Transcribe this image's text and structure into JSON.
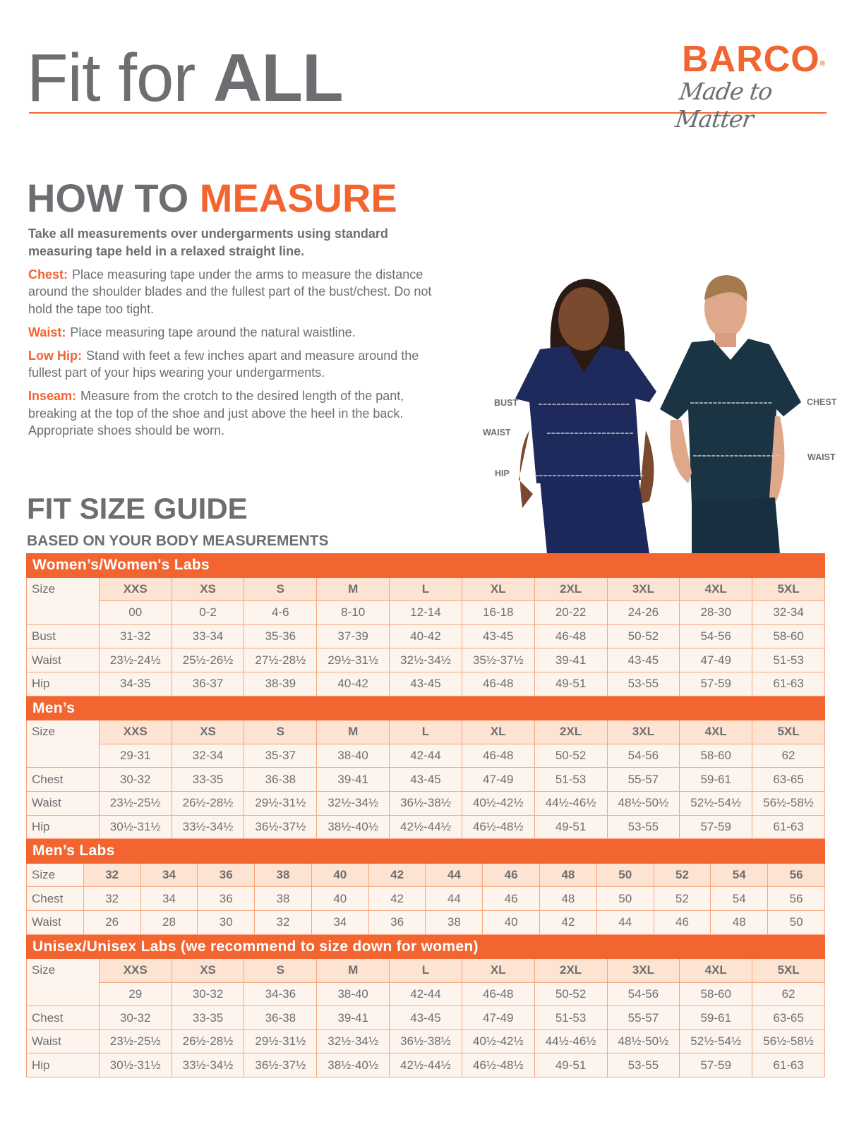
{
  "header": {
    "title_regular": "Fit for",
    "title_bold": "ALL",
    "logo_brand": "BARCO",
    "logo_registered": "®",
    "logo_tagline": "Made to Matter"
  },
  "how_to_measure": {
    "title_gray": "HOW TO",
    "title_accent": "MEASURE",
    "intro": "Take all measurements over undergarments using standard measuring tape held in a relaxed straight line.",
    "items": [
      {
        "label": "Chest:",
        "text": "Place measuring tape under the arms to measure the distance around the shoulder blades and the fullest part of the bust/chest. Do not hold the tape too tight."
      },
      {
        "label": "Waist:",
        "text": "Place measuring tape around the natural waistline."
      },
      {
        "label": "Low Hip:",
        "text": "Stand with feet a few inches apart and measure around the fullest part of your hips wearing your undergarments."
      },
      {
        "label": "Inseam:",
        "text": "Measure from the crotch to the desired length of the pant, breaking at the top of the shoe and just above the heel in the back. Appropriate shoes should be worn."
      }
    ]
  },
  "figure_labels": {
    "bust": "BUST",
    "waist_women": "WAIST",
    "hip": "HIP",
    "chest": "CHEST",
    "waist_men": "WAIST"
  },
  "size_guide": {
    "title": "FIT SIZE GUIDE",
    "subtitle": "BASED ON YOUR BODY MEASUREMENTS",
    "colors": {
      "accent": "#f26430",
      "header_cell": "#fde3d1",
      "body_cell": "#fef4ee",
      "border": "#f7a57c",
      "text": "#6d6e71"
    },
    "tables": [
      {
        "title": "Women’s/Women's Labs",
        "size_label": "Size",
        "sizes": [
          "XXS",
          "XS",
          "S",
          "M",
          "L",
          "XL",
          "2XL",
          "3XL",
          "4XL",
          "5XL"
        ],
        "size_numbers": [
          "00",
          "0-2",
          "4-6",
          "8-10",
          "12-14",
          "16-18",
          "20-22",
          "24-26",
          "28-30",
          "32-34"
        ],
        "rows": [
          {
            "label": "Bust",
            "values": [
              "31-32",
              "33-34",
              "35-36",
              "37-39",
              "40-42",
              "43-45",
              "46-48",
              "50-52",
              "54-56",
              "58-60"
            ]
          },
          {
            "label": "Waist",
            "values": [
              "23½-24½",
              "25½-26½",
              "27½-28½",
              "29½-31½",
              "32½-34½",
              "35½-37½",
              "39-41",
              "43-45",
              "47-49",
              "51-53"
            ]
          },
          {
            "label": "Hip",
            "values": [
              "34-35",
              "36-37",
              "38-39",
              "40-42",
              "43-45",
              "46-48",
              "49-51",
              "53-55",
              "57-59",
              "61-63"
            ]
          }
        ]
      },
      {
        "title": "Men’s",
        "size_label": "Size",
        "sizes": [
          "XXS",
          "XS",
          "S",
          "M",
          "L",
          "XL",
          "2XL",
          "3XL",
          "4XL",
          "5XL"
        ],
        "size_numbers": [
          "29-31",
          "32-34",
          "35-37",
          "38-40",
          "42-44",
          "46-48",
          "50-52",
          "54-56",
          "58-60",
          "62"
        ],
        "rows": [
          {
            "label": "Chest",
            "values": [
              "30-32",
              "33-35",
              "36-38",
              "39-41",
              "43-45",
              "47-49",
              "51-53",
              "55-57",
              "59-61",
              "63-65"
            ]
          },
          {
            "label": "Waist",
            "values": [
              "23½-25½",
              "26½-28½",
              "29½-31½",
              "32½-34½",
              "36½-38½",
              "40½-42½",
              "44½-46½",
              "48½-50½",
              "52½-54½",
              "56½-58½"
            ]
          },
          {
            "label": "Hip",
            "values": [
              "30½-31½",
              "33½-34½",
              "36½-37½",
              "38½-40½",
              "42½-44½",
              "46½-48½",
              "49-51",
              "53-55",
              "57-59",
              "61-63"
            ]
          }
        ]
      },
      {
        "title": "Men’s Labs",
        "size_label": "Size",
        "sizes": [
          "32",
          "34",
          "36",
          "38",
          "40",
          "42",
          "44",
          "46",
          "48",
          "50",
          "52",
          "54",
          "56"
        ],
        "rows": [
          {
            "label": "Chest",
            "values": [
              "32",
              "34",
              "36",
              "38",
              "40",
              "42",
              "44",
              "46",
              "48",
              "50",
              "52",
              "54",
              "56"
            ]
          },
          {
            "label": "Waist",
            "values": [
              "26",
              "28",
              "30",
              "32",
              "34",
              "36",
              "38",
              "40",
              "42",
              "44",
              "46",
              "48",
              "50"
            ]
          }
        ]
      },
      {
        "title": "Unisex/Unisex Labs (we recommend to size down for women)",
        "size_label": "Size",
        "sizes": [
          "XXS",
          "XS",
          "S",
          "M",
          "L",
          "XL",
          "2XL",
          "3XL",
          "4XL",
          "5XL"
        ],
        "size_numbers": [
          "29",
          "30-32",
          "34-36",
          "38-40",
          "42-44",
          "46-48",
          "50-52",
          "54-56",
          "58-60",
          "62"
        ],
        "rows": [
          {
            "label": "Chest",
            "values": [
              "30-32",
              "33-35",
              "36-38",
              "39-41",
              "43-45",
              "47-49",
              "51-53",
              "55-57",
              "59-61",
              "63-65"
            ]
          },
          {
            "label": "Waist",
            "values": [
              "23½-25½",
              "26½-28½",
              "29½-31½",
              "32½-34½",
              "36½-38½",
              "40½-42½",
              "44½-46½",
              "48½-50½",
              "52½-54½",
              "56½-58½"
            ]
          },
          {
            "label": "Hip",
            "values": [
              "30½-31½",
              "33½-34½",
              "36½-37½",
              "38½-40½",
              "42½-44½",
              "46½-48½",
              "49-51",
              "53-55",
              "57-59",
              "61-63"
            ]
          }
        ]
      }
    ]
  }
}
